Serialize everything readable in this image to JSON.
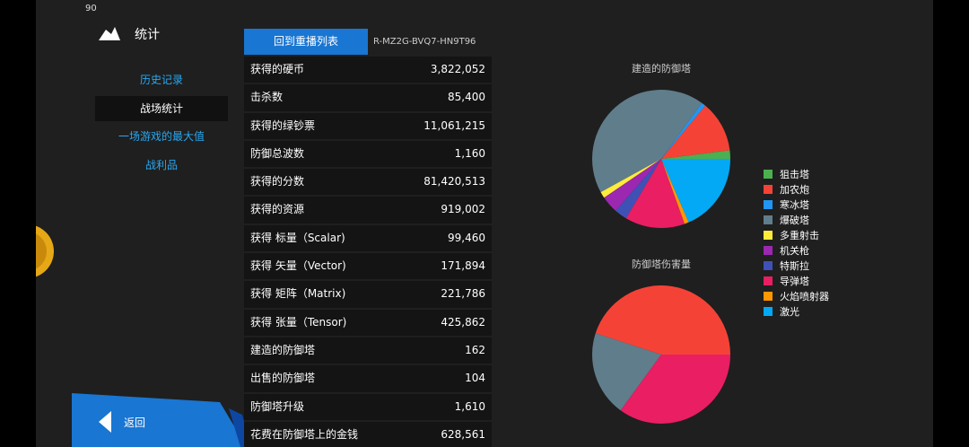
{
  "status": "90",
  "header": {
    "title": "统计"
  },
  "nav": [
    "历史记录",
    "战场统计",
    "一场游戏的最大值",
    "战利品"
  ],
  "nav_selected": 1,
  "tabs": {
    "back": "回到重播列表",
    "replay_id": "R-MZ2G-BVQ7-HN9T96"
  },
  "back": "返回",
  "table": {
    "rows": [
      [
        "获得的硬币",
        "3,822,052"
      ],
      [
        "击杀数",
        "85,400"
      ],
      [
        "获得的绿钞票",
        "11,061,215"
      ],
      [
        "防御总波数",
        "1,160"
      ],
      [
        "获得的分数",
        "81,420,513"
      ],
      [
        "获得的资源",
        "919,002"
      ],
      [
        "获得 标量（Scalar)",
        "99,460"
      ],
      [
        "获得 矢量（Vector)",
        "171,894"
      ],
      [
        "获得 矩阵（Matrix)",
        "221,786"
      ],
      [
        "获得 张量（Tensor)",
        "425,862"
      ],
      [
        "建造的防御塔",
        "162"
      ],
      [
        "出售的防御塔",
        "104"
      ],
      [
        "防御塔升级",
        "1,610"
      ],
      [
        "花费在防御塔上的金钱",
        "628,561"
      ]
    ]
  },
  "legend": {
    "categories": [
      "狙击塔",
      "加农炮",
      "寒冰塔",
      "爆破塔",
      "多重射击",
      "机关枪",
      "特斯拉",
      "导弹塔",
      "火焰喷射器",
      "激光"
    ],
    "colors": [
      "#4caf50",
      "#f44336",
      "#2196f3",
      "#607d8b",
      "#ffeb3b",
      "#9c27b0",
      "#3f51b5",
      "#e91e63",
      "#ff9800",
      "#03a9f4"
    ]
  },
  "charts": [
    {
      "type": "pie",
      "title": "建造的防御塔",
      "values": [
        2,
        12,
        1,
        43,
        1.5,
        4,
        3,
        14,
        1,
        18.5
      ]
    },
    {
      "type": "pie",
      "title": "防御塔伤害量",
      "values": [
        0,
        45,
        0,
        20,
        0,
        0,
        0,
        35,
        0,
        0
      ]
    }
  ]
}
